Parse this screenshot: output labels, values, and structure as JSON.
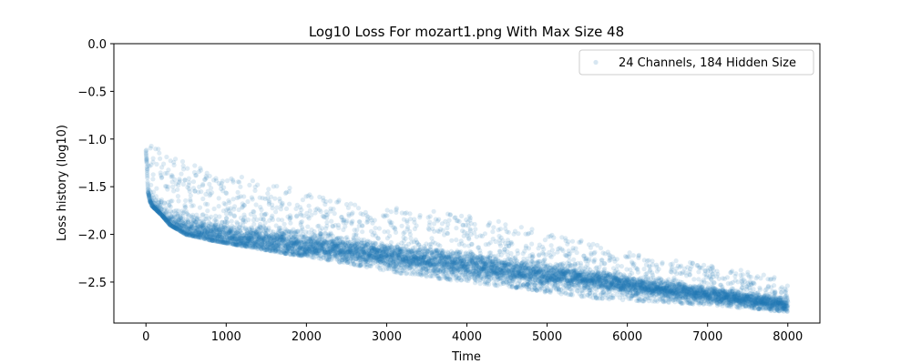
{
  "chart_data": {
    "type": "scatter",
    "title": "Log10 Loss For mozart1.png With Max Size 48",
    "xlabel": "Time",
    "ylabel": "Loss history (log10)",
    "xlim": [
      -400,
      8400
    ],
    "ylim": [
      -2.93,
      0.0
    ],
    "xticks": [
      0,
      1000,
      2000,
      3000,
      4000,
      5000,
      6000,
      7000,
      8000
    ],
    "xtick_labels": [
      "0",
      "1000",
      "2000",
      "3000",
      "4000",
      "5000",
      "6000",
      "7000",
      "8000"
    ],
    "yticks": [
      0.0,
      -0.5,
      -1.0,
      -1.5,
      -2.0,
      -2.5
    ],
    "ytick_labels": [
      "0.0",
      "−0.5",
      "−1.0",
      "−1.5",
      "−2.0",
      "−2.5"
    ],
    "legend_position": "top-right",
    "marker_color": "#1f77b4",
    "marker_alpha": 0.15,
    "series": [
      {
        "name": "24 Channels, 184 Hidden Size",
        "x": [
          0,
          10,
          25,
          50,
          75,
          100,
          150,
          200,
          250,
          300,
          400,
          500,
          600,
          700,
          800,
          1000,
          1200,
          1400,
          1600,
          1800,
          2000,
          2200,
          2400,
          2600,
          2800,
          3000,
          3200,
          3400,
          3600,
          3800,
          4000,
          4200,
          4400,
          4600,
          4800,
          5000,
          5200,
          5400,
          5600,
          5800,
          6000,
          6200,
          6400,
          6600,
          6800,
          7000,
          7200,
          7400,
          7600,
          7800,
          8000
        ],
        "y_lower": [
          -1.15,
          -1.25,
          -1.55,
          -1.65,
          -1.7,
          -1.72,
          -1.76,
          -1.8,
          -1.85,
          -1.9,
          -1.95,
          -2.0,
          -2.02,
          -2.04,
          -2.06,
          -2.09,
          -2.12,
          -2.15,
          -2.18,
          -2.21,
          -2.23,
          -2.26,
          -2.29,
          -2.32,
          -2.35,
          -2.38,
          -2.41,
          -2.43,
          -2.46,
          -2.48,
          -2.5,
          -2.52,
          -2.54,
          -2.56,
          -2.58,
          -2.61,
          -2.63,
          -2.65,
          -2.67,
          -2.68,
          -2.69,
          -2.7,
          -2.71,
          -2.72,
          -2.73,
          -2.74,
          -2.75,
          -2.77,
          -2.78,
          -2.8,
          -2.81
        ],
        "y_upper": [
          -1.08,
          -1.1,
          -1.05,
          -1.03,
          -1.02,
          -1.04,
          -1.1,
          -1.14,
          -1.14,
          -1.16,
          -1.2,
          -1.24,
          -1.27,
          -1.3,
          -1.32,
          -1.36,
          -1.4,
          -1.44,
          -1.47,
          -1.51,
          -1.56,
          -1.6,
          -1.64,
          -1.68,
          -1.72,
          -1.74,
          -1.7,
          -1.72,
          -1.75,
          -1.78,
          -1.8,
          -1.82,
          -1.86,
          -1.9,
          -1.94,
          -1.98,
          -2.02,
          -2.06,
          -2.1,
          -2.14,
          -2.18,
          -2.22,
          -2.24,
          -2.27,
          -2.29,
          -2.32,
          -2.35,
          -2.37,
          -2.4,
          -2.44,
          -2.5
        ],
        "y_dense": [
          -1.13,
          -1.3,
          -1.62,
          -1.68,
          -1.72,
          -1.75,
          -1.8,
          -1.84,
          -1.88,
          -1.9,
          -1.92,
          -1.95,
          -1.97,
          -1.98,
          -2.0,
          -2.02,
          -2.04,
          -2.06,
          -2.08,
          -2.1,
          -2.12,
          -2.14,
          -2.16,
          -2.18,
          -2.2,
          -2.22,
          -2.24,
          -2.26,
          -2.28,
          -2.3,
          -2.32,
          -2.34,
          -2.36,
          -2.38,
          -2.4,
          -2.42,
          -2.44,
          -2.46,
          -2.48,
          -2.5,
          -2.53,
          -2.55,
          -2.57,
          -2.59,
          -2.61,
          -2.63,
          -2.65,
          -2.67,
          -2.69,
          -2.71,
          -2.74
        ],
        "n_points": 8000
      }
    ]
  }
}
